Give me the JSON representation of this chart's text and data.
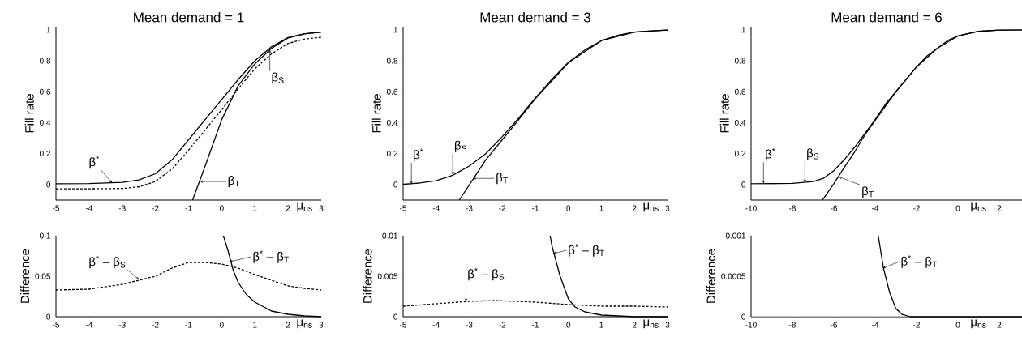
{
  "chart_data": [
    {
      "type": "line",
      "title": "Mean demand = 1",
      "xlabel": "μ$_{ns}$",
      "ylabel": "Fill rate",
      "xlim": [
        -5,
        3
      ],
      "ylim": [
        -0.1,
        1.02
      ],
      "xticks": [
        -5,
        -4,
        -3,
        -2,
        -1,
        0,
        1,
        2,
        3
      ],
      "yticks": [
        0,
        0.2,
        0.4,
        0.6,
        0.8,
        1
      ],
      "series": [
        {
          "color": "#000000",
          "line_style": "solid",
          "x": [
            -5,
            -4,
            -3,
            -2.5,
            -2,
            -1.5,
            -1,
            -0.5,
            0,
            0.5,
            1,
            1.5,
            2,
            2.5,
            3
          ],
          "values": [
            0.005,
            0.007,
            0.015,
            0.03,
            0.07,
            0.16,
            0.29,
            0.42,
            0.55,
            0.68,
            0.8,
            0.89,
            0.95,
            0.975,
            0.985
          ]
        },
        {
          "color": "#000000",
          "line_style": "dashed",
          "x": [
            -5,
            -4,
            -3,
            -2.5,
            -2,
            -1.5,
            -1,
            -0.5,
            0,
            0.5,
            1,
            1.5,
            2,
            2.5,
            3
          ],
          "values": [
            -0.028,
            -0.027,
            -0.025,
            -0.015,
            0.02,
            0.1,
            0.223,
            0.353,
            0.485,
            0.62,
            0.748,
            0.845,
            0.912,
            0.94,
            0.952
          ]
        },
        {
          "color": "#000000",
          "line_style": "solid",
          "x": [
            -0.88,
            -0.5,
            0,
            0.5,
            1,
            1.5,
            2,
            2.5,
            3
          ],
          "values": [
            -0.1,
            0.12,
            0.42,
            0.64,
            0.78,
            0.88,
            0.947,
            0.974,
            0.985
          ]
        }
      ],
      "annotations": [
        {
          "text": "β$^{*}$",
          "x": -3.3,
          "y": 0.01
        },
        {
          "text": "β$_{S}$",
          "x": 1.45,
          "y": 0.87
        },
        {
          "text": "β$_{T}$",
          "x": -0.65,
          "y": 0.02
        }
      ]
    },
    {
      "type": "line",
      "title": "Mean demand = 3",
      "xlabel": "μ$_{ns}$",
      "ylabel": "Fill rate",
      "xlim": [
        -5,
        3
      ],
      "ylim": [
        -0.1,
        1.02
      ],
      "xticks": [
        -5,
        -4,
        -3,
        -2,
        -1,
        0,
        1,
        2,
        3
      ],
      "yticks": [
        0,
        0.2,
        0.4,
        0.6,
        0.8,
        1
      ],
      "series": [
        {
          "color": "#000000",
          "line_style": "solid",
          "x": [
            -5,
            -4.5,
            -4,
            -3.5,
            -3,
            -2.5,
            -2,
            -1.5,
            -1,
            -0.5,
            0,
            0.5,
            1,
            1.5,
            2,
            2.5,
            3
          ],
          "values": [
            0.002,
            0.01,
            0.025,
            0.06,
            0.12,
            0.2,
            0.31,
            0.43,
            0.56,
            0.68,
            0.79,
            0.87,
            0.93,
            0.965,
            0.985,
            0.993,
            0.998
          ]
        },
        {
          "color": "#000000",
          "line_style": "solid",
          "x": [
            -3.3,
            -2.5,
            -2,
            -1.5,
            -1,
            -0.5,
            0,
            1,
            2,
            3
          ],
          "values": [
            -0.1,
            0.16,
            0.29,
            0.42,
            0.555,
            0.67,
            0.788,
            0.93,
            0.985,
            0.998
          ]
        }
      ],
      "annotations": [
        {
          "text": "β$^{*}$",
          "x": -4.75,
          "y": 0.005
        },
        {
          "text": "β$_{S}$",
          "x": -3.5,
          "y": 0.065
        },
        {
          "text": "β$_{T}$",
          "x": -2.88,
          "y": 0.04
        }
      ]
    },
    {
      "type": "line",
      "title": "Mean demand = 6",
      "xlabel": "μ$_{ns}$",
      "ylabel": "Fill rate",
      "xlim": [
        -10,
        3.1
      ],
      "ylim": [
        -0.1,
        1.02
      ],
      "xticks": [
        -10,
        -8,
        -6,
        -4,
        -2,
        0,
        2
      ],
      "yticks": [
        0,
        0.2,
        0.4,
        0.6,
        0.8,
        1
      ],
      "series": [
        {
          "color": "#000000",
          "line_style": "solid",
          "x": [
            -10,
            -9,
            -8,
            -7,
            -6.5,
            -6,
            -5.5,
            -5,
            -4.5,
            -4,
            -3.5,
            -3,
            -2.5,
            -2,
            -1.5,
            -1,
            -0.5,
            0,
            1,
            2,
            3.1
          ],
          "values": [
            0.005,
            0.006,
            0.008,
            0.02,
            0.04,
            0.09,
            0.16,
            0.24,
            0.33,
            0.42,
            0.52,
            0.6,
            0.68,
            0.76,
            0.83,
            0.88,
            0.93,
            0.96,
            0.99,
            0.998,
            1.0
          ]
        },
        {
          "color": "#000000",
          "line_style": "solid",
          "x": [
            -6.55,
            -6,
            -5.5,
            -5,
            -4.5,
            -4,
            -3,
            -2,
            -1,
            0,
            1,
            2,
            3.1
          ],
          "values": [
            -0.1,
            0.005,
            0.11,
            0.21,
            0.32,
            0.415,
            0.6,
            0.76,
            0.88,
            0.96,
            0.99,
            0.998,
            1.0
          ]
        }
      ],
      "annotations": [
        {
          "text": "β$^{*}$",
          "x": -9.4,
          "y": 0.008
        },
        {
          "text": "β$_{S}$",
          "x": -7.4,
          "y": 0.015
        },
        {
          "text": "β$_{T}$",
          "x": -5.75,
          "y": 0.05
        }
      ]
    },
    {
      "type": "line",
      "xlabel": "μ$_{ns}$",
      "ylabel": "Difference",
      "xlim": [
        -5,
        3
      ],
      "ylim": [
        0,
        0.1
      ],
      "xticks": [
        -5,
        -4,
        -3,
        -2,
        -1,
        0,
        1,
        2,
        3
      ],
      "yticks": [
        0,
        0.05,
        0.1
      ],
      "series": [
        {
          "color": "#000000",
          "line_style": "dashed",
          "x": [
            -5,
            -4,
            -3,
            -2.5,
            -2,
            -1.5,
            -1,
            -0.5,
            0,
            0.5,
            1,
            1.5,
            2,
            2.5,
            3
          ],
          "values": [
            0.033,
            0.034,
            0.04,
            0.045,
            0.05,
            0.06,
            0.067,
            0.067,
            0.065,
            0.06,
            0.052,
            0.045,
            0.038,
            0.035,
            0.033
          ]
        },
        {
          "color": "#000000",
          "line_style": "solid",
          "x": [
            0.05,
            0.2,
            0.35,
            0.5,
            0.75,
            1,
            1.5,
            2,
            2.5,
            3
          ],
          "values": [
            0.1,
            0.08,
            0.057,
            0.042,
            0.027,
            0.018,
            0.007,
            0.003,
            0.001,
            0
          ]
        }
      ],
      "annotations": [
        {
          "text": "β$^{*}$ – β$_{S}$",
          "x": -2.5,
          "y": 0.046
        },
        {
          "text": "β$^{*}$ – β$_{T}$",
          "x": 0.25,
          "y": 0.068
        }
      ]
    },
    {
      "type": "line",
      "xlabel": "μ$_{ns}$",
      "ylabel": "Difference",
      "xlim": [
        -5,
        3
      ],
      "ylim": [
        0,
        0.01
      ],
      "xticks": [
        -5,
        -4,
        -3,
        -2,
        -1,
        0,
        1,
        2,
        3
      ],
      "yticks": [
        0,
        0.005,
        0.01
      ],
      "series": [
        {
          "color": "#000000",
          "line_style": "dashed",
          "x": [
            -5,
            -4,
            -3,
            -2.2,
            -1,
            0,
            1,
            2,
            3
          ],
          "values": [
            0.0013,
            0.0016,
            0.0019,
            0.002,
            0.0018,
            0.0015,
            0.0013,
            0.0013,
            0.0012
          ]
        },
        {
          "color": "#000000",
          "line_style": "solid",
          "x": [
            -0.55,
            -0.5,
            -0.25,
            0,
            0.2,
            0.5,
            1,
            1.5,
            2,
            3
          ],
          "values": [
            0.01,
            0.0088,
            0.005,
            0.0022,
            0.0012,
            0.0006,
            0.0002,
            0.0001,
            0,
            0
          ]
        }
      ],
      "annotations": [
        {
          "text": "β$^{*}$ – β$_{S}$",
          "x": -3.1,
          "y": 0.0019
        },
        {
          "text": "β$^{*}$ – β$_{T}$",
          "x": -0.45,
          "y": 0.0078
        }
      ]
    },
    {
      "type": "line",
      "xlabel": "μ$_{ns}$",
      "ylabel": "Difference",
      "xlim": [
        -10,
        3.1
      ],
      "ylim": [
        0,
        0.001
      ],
      "xticks": [
        -10,
        -8,
        -6,
        -4,
        -2,
        0,
        2
      ],
      "yticks": [
        0,
        0.0005,
        0.001
      ],
      "series": [
        {
          "color": "#000000",
          "line_style": "solid",
          "x": [
            -3.85,
            -3.6,
            -3.3,
            -3,
            -2.7,
            -2.3,
            3.1
          ],
          "values": [
            0.001,
            0.0006,
            0.0003,
            0.0001,
            3e-05,
            0,
            0
          ]
        }
      ],
      "annotations": [
        {
          "text": "β$^{*}$ – β$_{T}$",
          "x": -3.62,
          "y": 0.0006
        }
      ]
    }
  ]
}
